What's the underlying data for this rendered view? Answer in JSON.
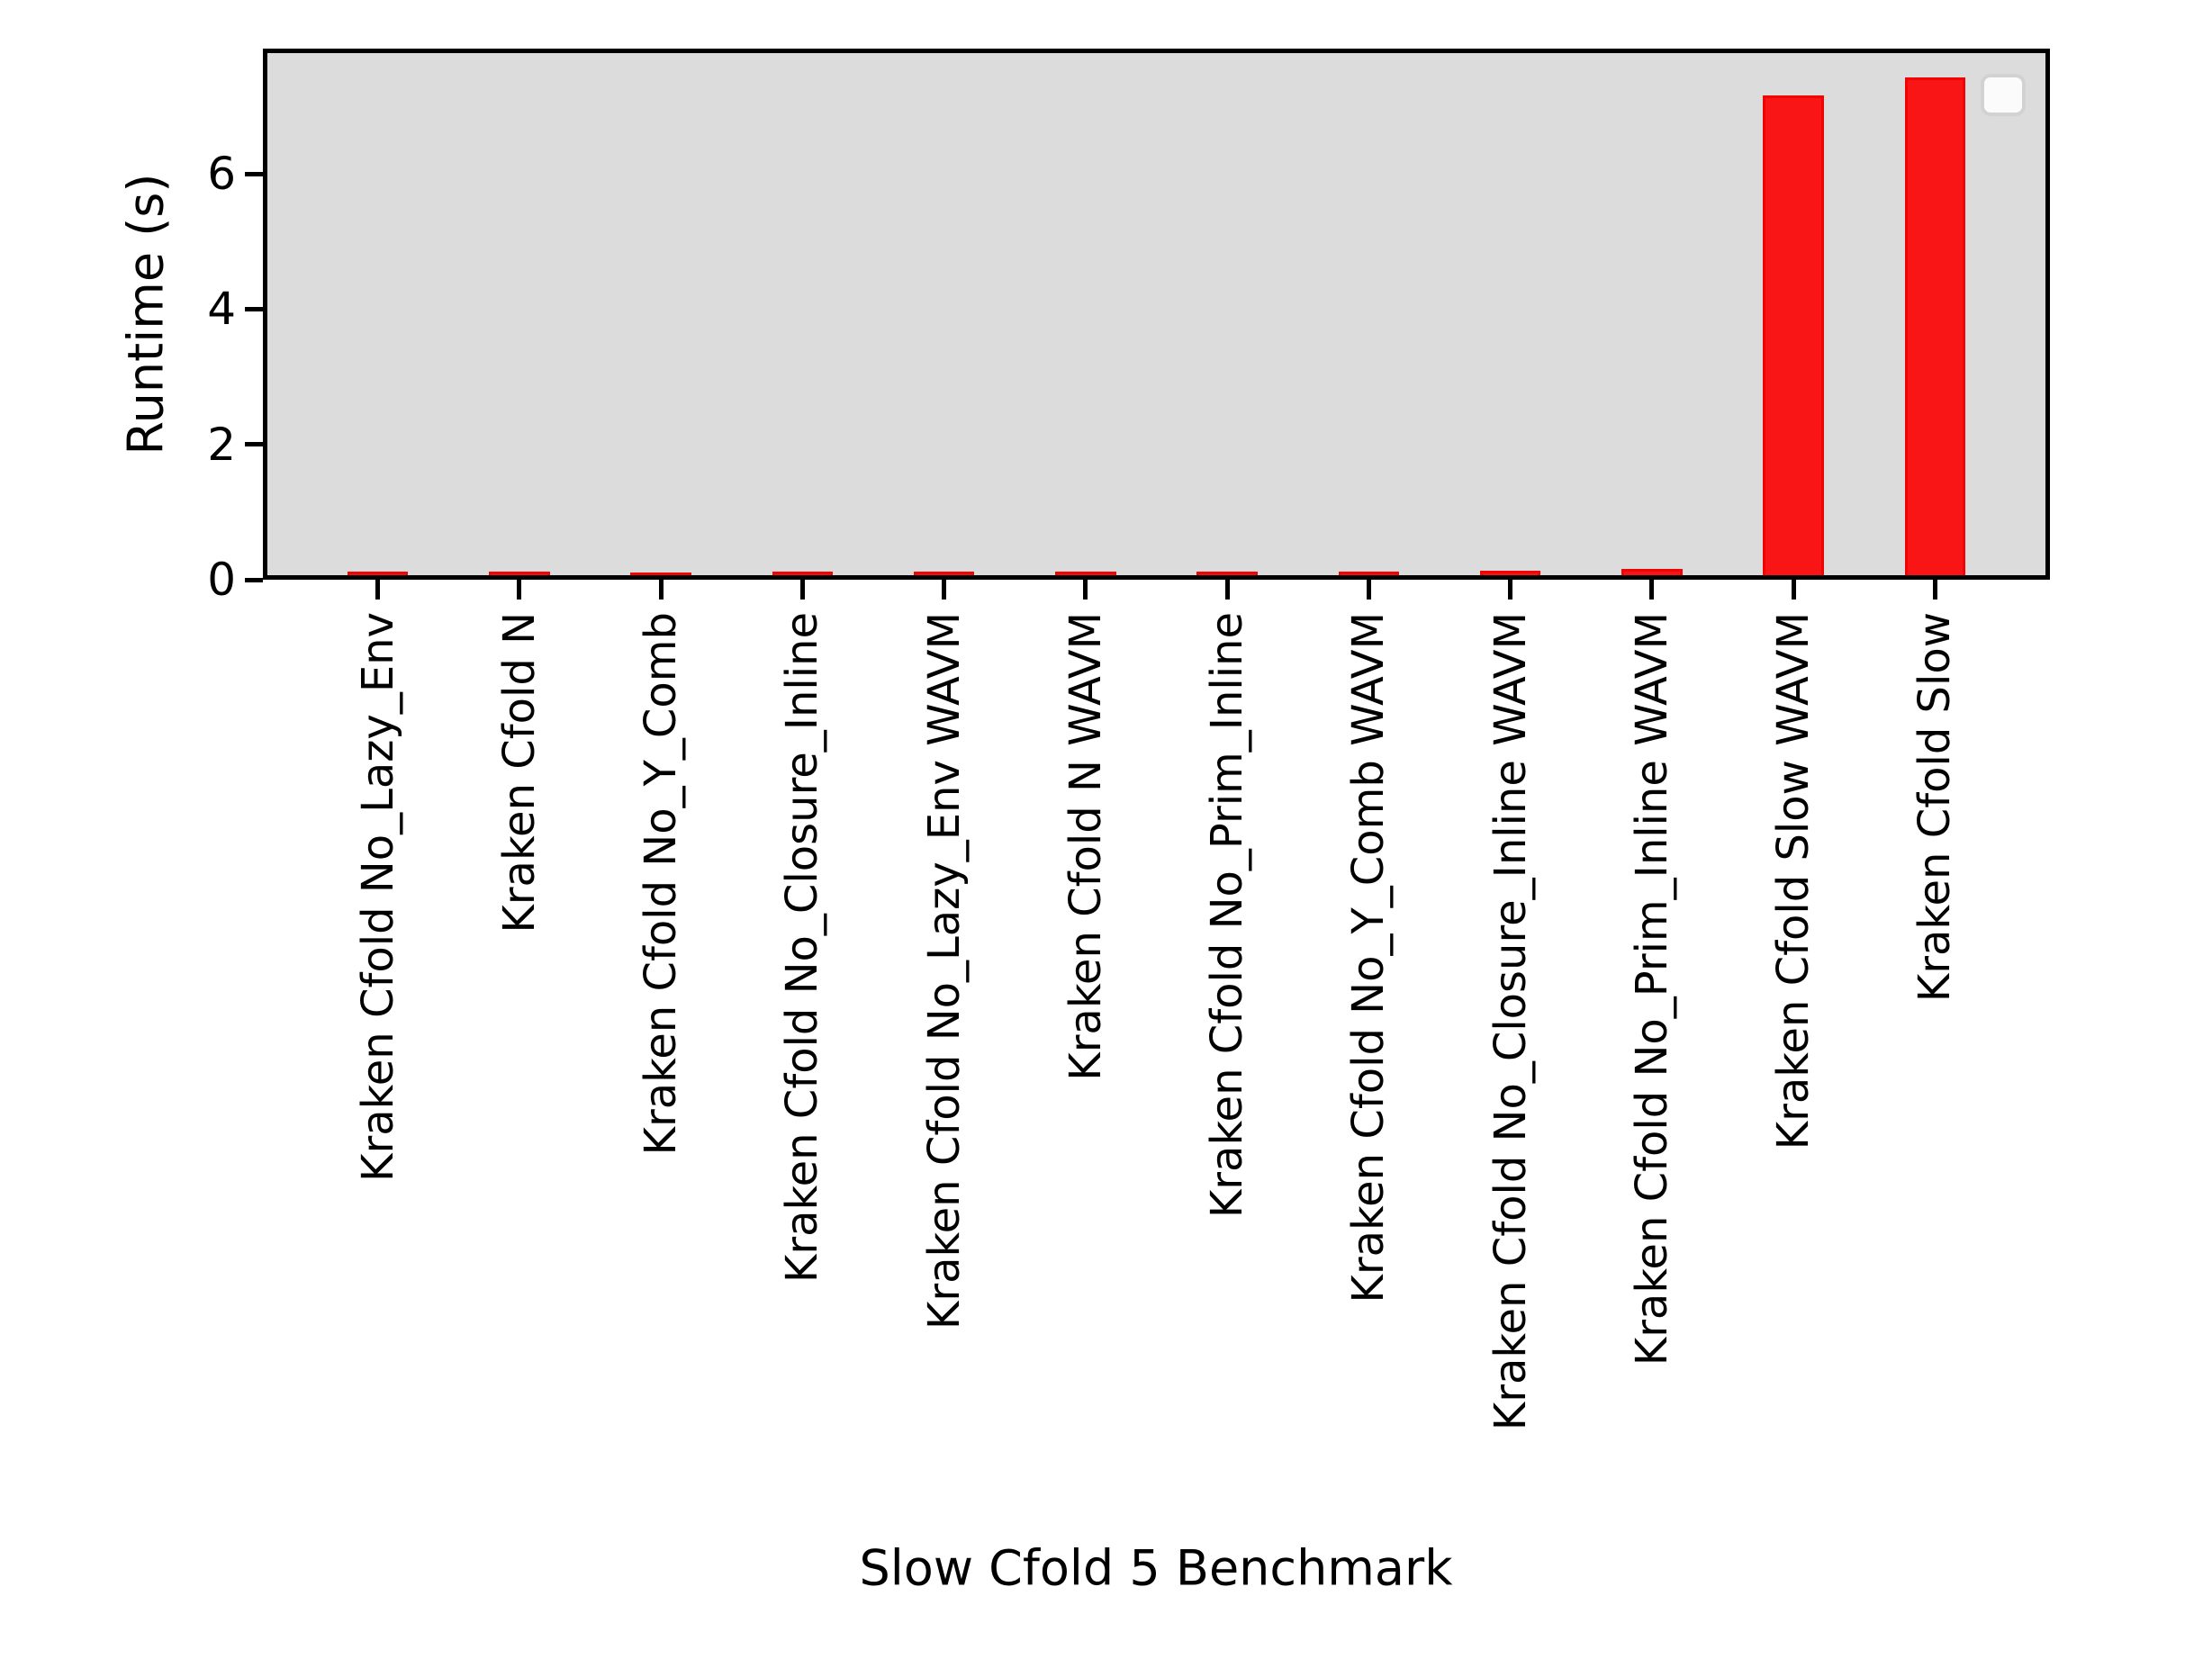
{
  "figure": {
    "background": "#ffffff",
    "plot_background": "#dcdcdc",
    "spine_color": "#000000",
    "bar_fill": "#f91515",
    "bar_edge": "#f00505",
    "legend_background": "#fbfbfb",
    "legend_border": "#d2d2d2"
  },
  "chart_data": {
    "type": "bar",
    "title": "",
    "xlabel": "Slow Cfold 5 Benchmark",
    "ylabel": "Runtime (s)",
    "categories": [
      "Kraken Cfold No_Lazy_Env",
      "Kraken Cfold N",
      "Kraken Cfold No_Y_Comb",
      "Kraken Cfold No_Closure_Inline",
      "Kraken Cfold No_Lazy_Env WAVM",
      "Kraken Cfold N WAVM",
      "Kraken Cfold No_Prim_Inline",
      "Kraken Cfold No_Y_Comb WAVM",
      "Kraken Cfold No_Closure_Inline WAVM",
      "Kraken Cfold No_Prim_Inline WAVM",
      "Kraken Cfold Slow WAVM",
      "Kraken Cfold Slow"
    ],
    "values": [
      0.05,
      0.05,
      0.04,
      0.06,
      0.06,
      0.05,
      0.06,
      0.05,
      0.07,
      0.09,
      7.21,
      7.48
    ],
    "yticks": [
      0,
      2,
      4,
      6
    ],
    "ylim": [
      0,
      7.85
    ],
    "bar_color_name": "red",
    "grid": false,
    "legend": {
      "visible": true,
      "position": "upper right",
      "entries": []
    }
  }
}
